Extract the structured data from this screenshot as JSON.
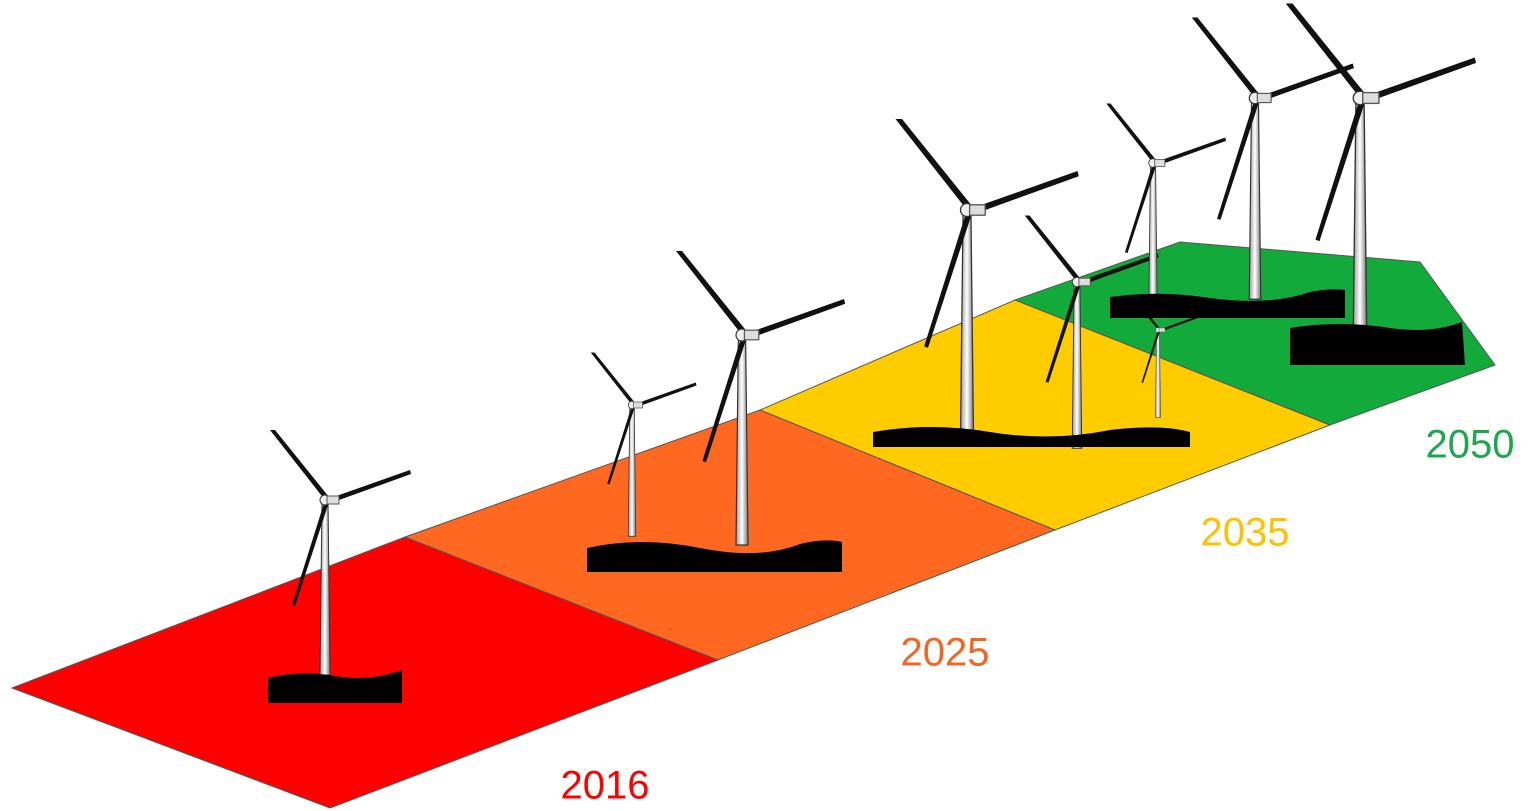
{
  "stages": [
    {
      "label": "2016"
    },
    {
      "label": "2025"
    },
    {
      "label": "2035"
    },
    {
      "label": "2050"
    }
  ]
}
